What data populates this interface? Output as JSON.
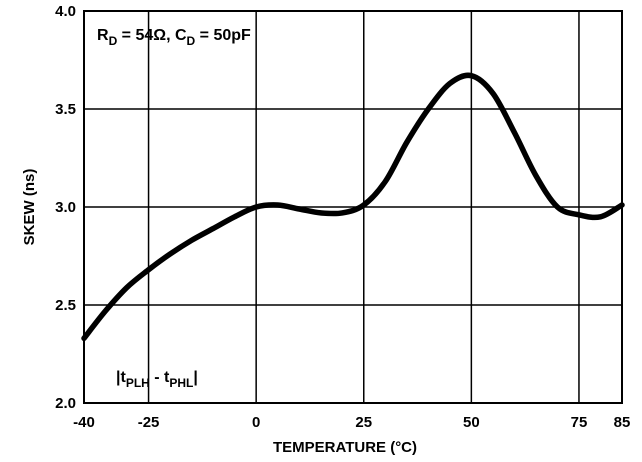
{
  "chart_data": {
    "type": "line",
    "xlabel": "TEMPERATURE (°C)",
    "ylabel": "SKEW (ns)",
    "xlim": [
      -40,
      85
    ],
    "ylim": [
      2.0,
      4.0
    ],
    "x_ticks": [
      -40,
      -25,
      0,
      25,
      50,
      75,
      85
    ],
    "x_tick_labels": [
      "-40",
      "-25",
      "0",
      "25",
      "50",
      "75",
      "85"
    ],
    "y_ticks": [
      2.0,
      2.5,
      3.0,
      3.5,
      4.0
    ],
    "y_tick_labels": [
      "2.0",
      "2.5",
      "3.0",
      "3.5",
      "4.0"
    ],
    "grid": true,
    "series": [
      {
        "x": [
          -40,
          -35,
          -30,
          -25,
          -20,
          -15,
          -10,
          -5,
          0,
          5,
          10,
          15,
          20,
          25,
          30,
          35,
          40,
          45,
          50,
          55,
          60,
          65,
          70,
          75,
          80,
          85
        ],
        "y": [
          2.33,
          2.47,
          2.59,
          2.68,
          2.76,
          2.83,
          2.89,
          2.95,
          3.0,
          3.01,
          2.99,
          2.97,
          2.97,
          3.01,
          3.13,
          3.33,
          3.5,
          3.63,
          3.67,
          3.58,
          3.38,
          3.16,
          3.0,
          2.96,
          2.95,
          3.01
        ]
      }
    ],
    "annotations": {
      "conditions": {
        "r_main": "R",
        "r_sub": "D",
        "r_val": " = 54Ω, ",
        "c_main": "C",
        "c_sub": "D",
        "c_val": " = 50pF"
      },
      "measure": {
        "bar_open": "|t",
        "sub1": "PLH",
        "mid": " - t",
        "sub2": "PHL",
        "bar_close": "|"
      }
    }
  }
}
